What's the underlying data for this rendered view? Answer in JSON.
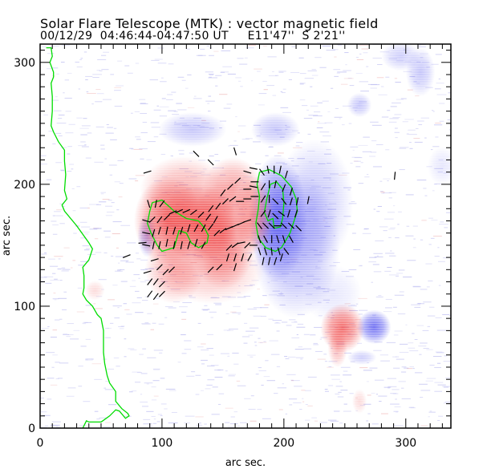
{
  "header": {
    "title": "Solar Flare Telescope (MTK) : vector magnetic field",
    "subtitle": "00/12/29  04:46:44-04:47:50 UT     E11'47''  S 2'21''"
  },
  "chart_data": {
    "type": "heatmap",
    "title": "Solar Flare Telescope (MTK) : vector magnetic field",
    "subtitle": "00/12/29  04:46:44-04:47:50 UT     E11'47''  S 2'21''",
    "xlabel": "arc sec.",
    "ylabel": "arc sec.",
    "xlim": [
      0,
      337
    ],
    "ylim": [
      0,
      315
    ],
    "x_ticks": [
      0,
      100,
      200,
      300
    ],
    "y_ticks": [
      0,
      100,
      200,
      300
    ],
    "x_minor_step": 10,
    "y_minor_step": 10,
    "colors": {
      "positive": "#f04848",
      "negative": "#5a5af0",
      "contour": "#00dd00",
      "vector": "#000000",
      "frame": "#000000"
    },
    "positive_polarity": [
      {
        "x": 105,
        "y": 170,
        "sx": 14,
        "sy": 18,
        "strength": 0.85
      },
      {
        "x": 130,
        "y": 168,
        "sx": 16,
        "sy": 16,
        "strength": 0.9
      },
      {
        "x": 150,
        "y": 158,
        "sx": 14,
        "sy": 22,
        "strength": 0.75
      },
      {
        "x": 118,
        "y": 195,
        "sx": 18,
        "sy": 14,
        "strength": 0.45
      },
      {
        "x": 158,
        "y": 198,
        "sx": 12,
        "sy": 12,
        "strength": 0.5
      },
      {
        "x": 175,
        "y": 175,
        "sx": 8,
        "sy": 16,
        "strength": 0.6
      },
      {
        "x": 110,
        "y": 130,
        "sx": 12,
        "sy": 14,
        "strength": 0.45
      },
      {
        "x": 140,
        "y": 130,
        "sx": 22,
        "sy": 14,
        "strength": 0.35
      },
      {
        "x": 248,
        "y": 82,
        "sx": 9,
        "sy": 10,
        "strength": 0.8
      },
      {
        "x": 244,
        "y": 66,
        "sx": 4,
        "sy": 8,
        "strength": 0.4
      },
      {
        "x": 45,
        "y": 113,
        "sx": 4,
        "sy": 4,
        "strength": 0.2
      },
      {
        "x": 262,
        "y": 22,
        "sx": 3,
        "sy": 5,
        "strength": 0.2
      }
    ],
    "negative_polarity": [
      {
        "x": 195,
        "y": 172,
        "sx": 12,
        "sy": 26,
        "strength": 0.95
      },
      {
        "x": 210,
        "y": 150,
        "sx": 18,
        "sy": 30,
        "strength": 0.5
      },
      {
        "x": 225,
        "y": 185,
        "sx": 16,
        "sy": 26,
        "strength": 0.35
      },
      {
        "x": 88,
        "y": 158,
        "sx": 4,
        "sy": 9,
        "strength": 0.55
      },
      {
        "x": 125,
        "y": 245,
        "sx": 14,
        "sy": 7,
        "strength": 0.35
      },
      {
        "x": 193,
        "y": 245,
        "sx": 10,
        "sy": 7,
        "strength": 0.35
      },
      {
        "x": 274,
        "y": 83,
        "sx": 7,
        "sy": 7,
        "strength": 0.85
      },
      {
        "x": 264,
        "y": 58,
        "sx": 6,
        "sy": 3,
        "strength": 0.3
      },
      {
        "x": 262,
        "y": 265,
        "sx": 5,
        "sy": 5,
        "strength": 0.35
      },
      {
        "x": 312,
        "y": 292,
        "sx": 6,
        "sy": 10,
        "strength": 0.35
      },
      {
        "x": 296,
        "y": 305,
        "sx": 8,
        "sy": 6,
        "strength": 0.3
      },
      {
        "x": 240,
        "y": 110,
        "sx": 12,
        "sy": 12,
        "strength": 0.15
      },
      {
        "x": 330,
        "y": 215,
        "sx": 6,
        "sy": 8,
        "strength": 0.15
      }
    ],
    "limb_contour": [
      [
        5,
        312
      ],
      [
        9,
        312
      ],
      [
        10,
        305
      ],
      [
        8,
        300
      ],
      [
        11,
        292
      ],
      [
        11,
        288
      ],
      [
        9,
        283
      ],
      [
        10,
        272
      ],
      [
        10,
        260
      ],
      [
        9,
        248
      ],
      [
        11,
        243
      ],
      [
        15,
        235
      ],
      [
        20,
        228
      ],
      [
        20,
        219
      ],
      [
        21,
        208
      ],
      [
        20,
        195
      ],
      [
        22,
        188
      ],
      [
        18,
        183
      ],
      [
        20,
        178
      ],
      [
        30,
        166
      ],
      [
        40,
        152
      ],
      [
        43,
        147
      ],
      [
        40,
        138
      ],
      [
        35,
        132
      ],
      [
        36,
        125
      ],
      [
        36,
        115
      ],
      [
        35,
        110
      ],
      [
        38,
        105
      ],
      [
        43,
        100
      ],
      [
        47,
        93
      ],
      [
        50,
        90
      ],
      [
        52,
        80
      ],
      [
        52,
        62
      ],
      [
        53,
        53
      ],
      [
        55,
        43
      ],
      [
        57,
        37
      ],
      [
        62,
        30
      ],
      [
        62,
        22
      ],
      [
        67,
        16
      ],
      [
        72,
        12
      ],
      [
        73,
        10
      ],
      [
        70,
        8
      ],
      [
        65,
        14
      ],
      [
        62,
        15
      ],
      [
        57,
        10
      ],
      [
        50,
        5
      ],
      [
        40,
        5
      ],
      [
        38,
        6
      ],
      [
        35,
        0
      ]
    ],
    "neutral_contours": [
      [
        [
          92,
          185
        ],
        [
          100,
          187
        ],
        [
          110,
          178
        ],
        [
          120,
          172
        ],
        [
          130,
          170
        ],
        [
          135,
          164
        ],
        [
          138,
          158
        ],
        [
          137,
          152
        ],
        [
          130,
          148
        ],
        [
          124,
          152
        ],
        [
          120,
          160
        ],
        [
          114,
          162
        ],
        [
          110,
          148
        ],
        [
          100,
          145
        ],
        [
          96,
          150
        ],
        [
          91,
          160
        ],
        [
          88,
          168
        ],
        [
          90,
          178
        ],
        [
          92,
          185
        ]
      ],
      [
        [
          180,
          210
        ],
        [
          188,
          212
        ],
        [
          198,
          207
        ],
        [
          206,
          198
        ],
        [
          210,
          188
        ],
        [
          211,
          178
        ],
        [
          205,
          160
        ],
        [
          198,
          148
        ],
        [
          193,
          145
        ],
        [
          185,
          148
        ],
        [
          179,
          156
        ],
        [
          177,
          168
        ],
        [
          179,
          180
        ],
        [
          180,
          190
        ],
        [
          178,
          200
        ],
        [
          180,
          210
        ]
      ],
      [
        [
          189,
          200
        ],
        [
          194,
          202
        ],
        [
          199,
          196
        ],
        [
          200,
          185
        ],
        [
          199,
          172
        ],
        [
          197,
          165
        ],
        [
          192,
          164
        ],
        [
          191,
          172
        ],
        [
          187,
          170
        ],
        [
          184,
          177
        ],
        [
          186,
          188
        ],
        [
          189,
          200
        ]
      ]
    ],
    "vectors": [
      [
        89,
        184,
        -0.3,
        1
      ],
      [
        95,
        184,
        0.2,
        1
      ],
      [
        100,
        184,
        0.6,
        0.8
      ],
      [
        87,
        170,
        1,
        -0.3
      ],
      [
        92,
        171,
        0.7,
        0.7
      ],
      [
        98,
        171,
        0.6,
        0.8
      ],
      [
        104,
        173,
        0.7,
        0.7
      ],
      [
        109,
        177,
        0.9,
        0.4
      ],
      [
        114,
        178,
        0.9,
        0.4
      ],
      [
        120,
        178,
        0.9,
        0.4
      ],
      [
        126,
        177,
        0.8,
        0.6
      ],
      [
        132,
        175,
        0.7,
        0.7
      ],
      [
        138,
        173,
        0.6,
        0.8
      ],
      [
        144,
        171,
        0.5,
        0.9
      ],
      [
        87,
        160,
        1,
        -0.2
      ],
      [
        93,
        160,
        0.3,
        1
      ],
      [
        98,
        162,
        0.3,
        1
      ],
      [
        104,
        162,
        0.2,
        1
      ],
      [
        110,
        162,
        0.3,
        1
      ],
      [
        116,
        162,
        0.3,
        1
      ],
      [
        122,
        164,
        0.3,
        1
      ],
      [
        128,
        164,
        0.5,
        0.9
      ],
      [
        134,
        164,
        0.5,
        0.9
      ],
      [
        140,
        165,
        0.6,
        0.8
      ],
      [
        87,
        150,
        1,
        -0.2
      ],
      [
        93,
        150,
        0.2,
        1
      ],
      [
        98,
        150,
        0.2,
        1
      ],
      [
        104,
        152,
        0.2,
        1
      ],
      [
        110,
        150,
        0.2,
        1
      ],
      [
        116,
        150,
        0.2,
        1
      ],
      [
        122,
        150,
        0.3,
        1
      ],
      [
        128,
        152,
        0.3,
        1
      ],
      [
        134,
        150,
        0.5,
        0.9
      ],
      [
        145,
        160,
        0.7,
        0.7
      ],
      [
        150,
        162,
        0.8,
        0.6
      ],
      [
        155,
        164,
        0.9,
        0.4
      ],
      [
        160,
        166,
        0.9,
        0.4
      ],
      [
        165,
        168,
        0.9,
        0.4
      ],
      [
        170,
        170,
        0.9,
        0.3
      ],
      [
        140,
        180,
        0.6,
        0.8
      ],
      [
        146,
        182,
        0.6,
        0.8
      ],
      [
        152,
        186,
        0.7,
        0.7
      ],
      [
        158,
        188,
        0.8,
        0.6
      ],
      [
        164,
        186,
        1,
        0
      ],
      [
        170,
        188,
        1,
        0
      ],
      [
        176,
        190,
        1,
        0
      ],
      [
        150,
        193,
        0.6,
        0.8
      ],
      [
        156,
        198,
        0.7,
        0.7
      ],
      [
        162,
        203,
        0.7,
        0.7
      ],
      [
        170,
        196,
        1,
        0
      ],
      [
        175,
        198,
        1,
        -0.2
      ],
      [
        170,
        210,
        1,
        -0.3
      ],
      [
        175,
        213,
        1,
        -0.2
      ],
      [
        176,
        202,
        1,
        0
      ],
      [
        182,
        210,
        0.6,
        -0.8
      ],
      [
        187,
        212,
        0.2,
        -1
      ],
      [
        192,
        212,
        0,
        -1
      ],
      [
        197,
        212,
        0.2,
        1
      ],
      [
        202,
        208,
        0.3,
        1
      ],
      [
        183,
        198,
        -0.5,
        -0.8
      ],
      [
        188,
        200,
        0,
        -1
      ],
      [
        193,
        200,
        0.2,
        1
      ],
      [
        200,
        197,
        0.4,
        1
      ],
      [
        206,
        194,
        0.3,
        1
      ],
      [
        183,
        188,
        -0.5,
        -0.8
      ],
      [
        188,
        188,
        0,
        -1
      ],
      [
        193,
        186,
        0.7,
        -0.7
      ],
      [
        200,
        186,
        0.6,
        -0.8
      ],
      [
        206,
        186,
        0.3,
        1
      ],
      [
        211,
        186,
        0.2,
        1
      ],
      [
        183,
        176,
        -0.6,
        -0.8
      ],
      [
        188,
        176,
        -0.3,
        -1
      ],
      [
        193,
        174,
        0.7,
        -0.7
      ],
      [
        198,
        176,
        0.8,
        -0.6
      ],
      [
        204,
        176,
        0.3,
        1
      ],
      [
        210,
        176,
        0.3,
        1
      ],
      [
        180,
        166,
        0.6,
        -0.8
      ],
      [
        185,
        166,
        0.7,
        -0.7
      ],
      [
        190,
        166,
        0.7,
        -0.7
      ],
      [
        195,
        166,
        1,
        0
      ],
      [
        200,
        166,
        0.7,
        -0.7
      ],
      [
        206,
        166,
        0.7,
        -0.7
      ],
      [
        212,
        164,
        0.7,
        -0.7
      ],
      [
        180,
        155,
        0.3,
        -1
      ],
      [
        185,
        155,
        0.5,
        -0.9
      ],
      [
        190,
        155,
        0,
        -1
      ],
      [
        195,
        155,
        0.3,
        -1
      ],
      [
        200,
        155,
        0.3,
        -1
      ],
      [
        206,
        155,
        0.5,
        -0.9
      ],
      [
        180,
        145,
        0.3,
        -1
      ],
      [
        185,
        145,
        0.3,
        -1
      ],
      [
        190,
        145,
        0.1,
        -1
      ],
      [
        196,
        145,
        0.3,
        -1
      ],
      [
        202,
        145,
        0.6,
        -0.8
      ],
      [
        170,
        150,
        0.7,
        0.7
      ],
      [
        175,
        150,
        1,
        0
      ],
      [
        165,
        152,
        1,
        0.2
      ],
      [
        160,
        150,
        0.8,
        0.6
      ],
      [
        155,
        148,
        0.7,
        0.7
      ],
      [
        160,
        140,
        0.3,
        1
      ],
      [
        166,
        140,
        0.3,
        1
      ],
      [
        172,
        140,
        0.5,
        0.9
      ],
      [
        183,
        137,
        0.2,
        1
      ],
      [
        188,
        137,
        0.2,
        1
      ],
      [
        193,
        137,
        0.3,
        1
      ],
      [
        198,
        140,
        0.3,
        1
      ],
      [
        98,
        132,
        0.7,
        0.7
      ],
      [
        103,
        128,
        0.7,
        0.7
      ],
      [
        108,
        130,
        0.7,
        0.7
      ],
      [
        90,
        120,
        0.6,
        0.8
      ],
      [
        95,
        120,
        0.6,
        0.8
      ],
      [
        100,
        118,
        0.7,
        0.7
      ],
      [
        90,
        110,
        0.6,
        0.8
      ],
      [
        95,
        108,
        0.6,
        0.8
      ],
      [
        100,
        110,
        0.7,
        0.7
      ],
      [
        88,
        128,
        1,
        0.3
      ],
      [
        94,
        138,
        1,
        0.3
      ],
      [
        84,
        152,
        1,
        0.1
      ],
      [
        71,
        141,
        1,
        0.4
      ],
      [
        140,
        130,
        0.7,
        0.7
      ],
      [
        147,
        132,
        0.7,
        0.7
      ],
      [
        154,
        140,
        0.3,
        1
      ],
      [
        160,
        132,
        0.3,
        1
      ],
      [
        88,
        210,
        1,
        0.3
      ],
      [
        128,
        225,
        -0.7,
        0.7
      ],
      [
        140,
        218,
        -0.7,
        0.7
      ],
      [
        160,
        227,
        -0.3,
        1
      ],
      [
        220,
        187,
        0.2,
        1
      ],
      [
        291,
        207,
        0.1,
        1
      ]
    ]
  }
}
